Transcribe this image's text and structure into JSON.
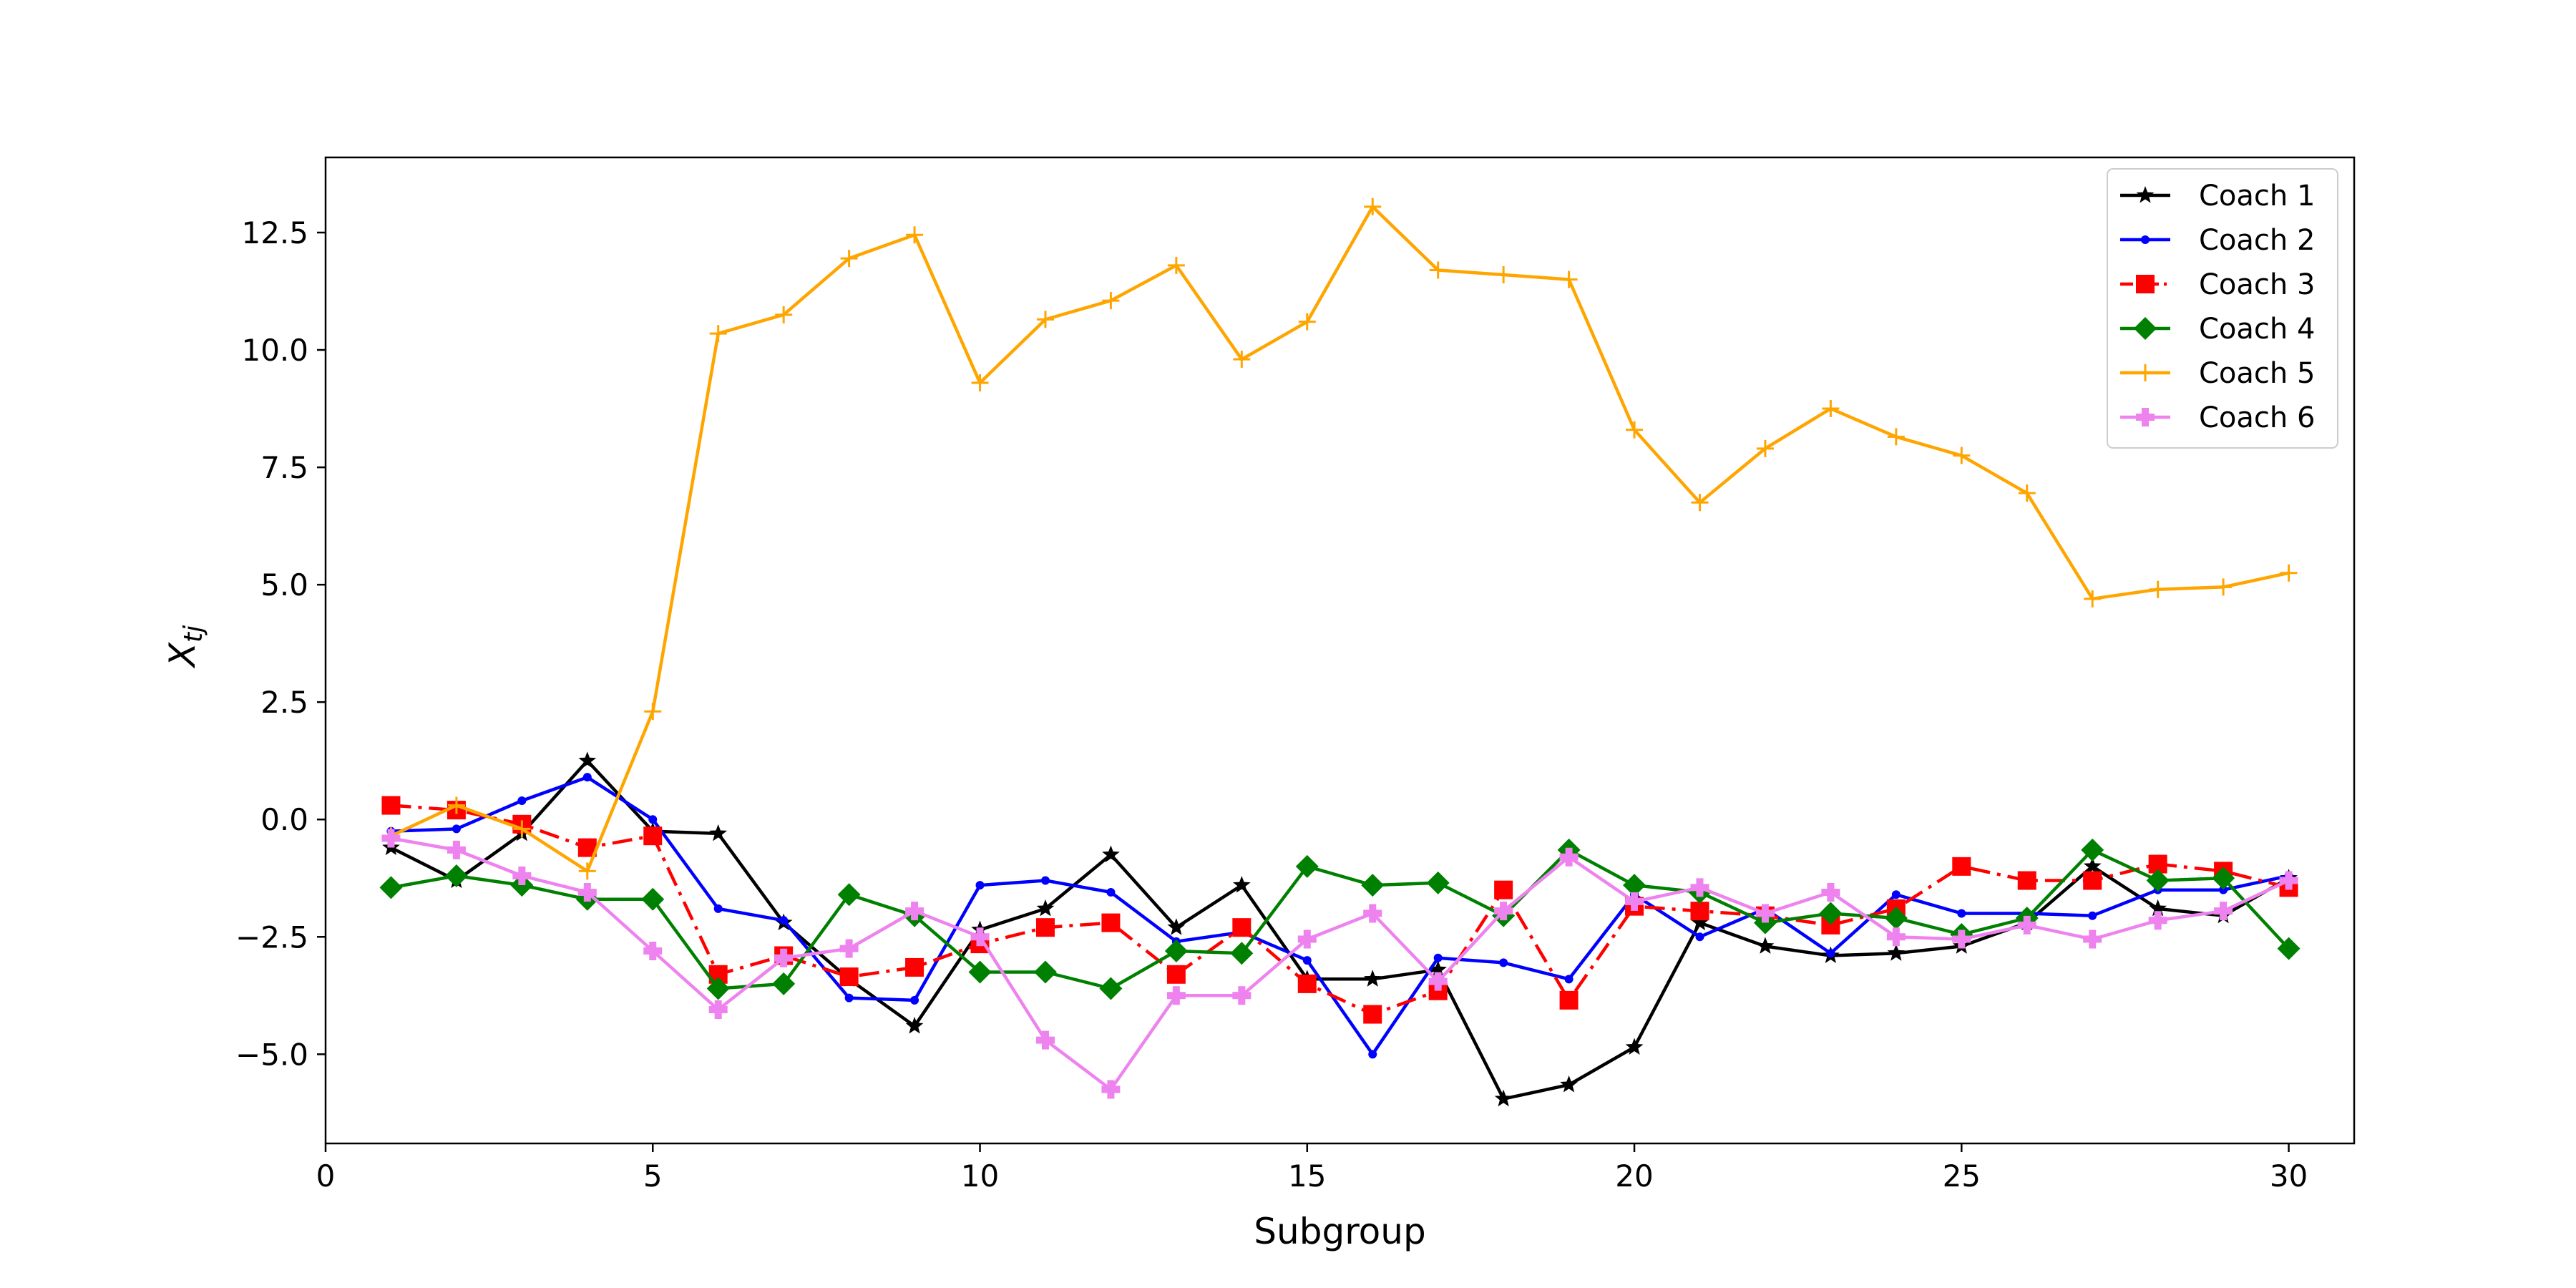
{
  "chart_data": {
    "type": "line",
    "title": "",
    "xlabel": "Subgroup",
    "ylabel": "X",
    "ylabel_subscript": "tj",
    "xlim": [
      0,
      31
    ],
    "ylim": [
      -6.9,
      14.1
    ],
    "xticks": [
      0,
      5,
      10,
      15,
      20,
      25,
      30
    ],
    "xtick_labels": [
      "0",
      "5",
      "10",
      "15",
      "20",
      "25",
      "30"
    ],
    "yticks": [
      -5.0,
      -2.5,
      0.0,
      2.5,
      5.0,
      7.5,
      10.0,
      12.5
    ],
    "ytick_labels": [
      "−5.0",
      "−2.5",
      "0.0",
      "2.5",
      "5.0",
      "7.5",
      "10.0",
      "12.5"
    ],
    "grid": false,
    "legend_position": "top-right",
    "x": [
      1,
      2,
      3,
      4,
      5,
      6,
      7,
      8,
      9,
      10,
      11,
      12,
      13,
      14,
      15,
      16,
      17,
      18,
      19,
      20,
      21,
      22,
      23,
      24,
      25,
      26,
      27,
      28,
      29,
      30
    ],
    "series": [
      {
        "name": "Coach 1",
        "color": "#000000",
        "marker": "star",
        "linestyle": "solid",
        "values": [
          -0.6,
          -1.3,
          -0.3,
          1.25,
          -0.25,
          -0.3,
          -2.2,
          -3.4,
          -4.4,
          -2.35,
          -1.9,
          -0.75,
          -2.3,
          -1.4,
          -3.4,
          -3.4,
          -3.2,
          -5.95,
          -5.65,
          -4.85,
          -2.2,
          -2.7,
          -2.9,
          -2.85,
          -2.7,
          -2.2,
          -1.0,
          -1.9,
          -2.05,
          -1.25
        ]
      },
      {
        "name": "Coach 2",
        "color": "#0000ff",
        "marker": "dot",
        "linestyle": "solid",
        "values": [
          -0.25,
          -0.2,
          0.4,
          0.9,
          0.0,
          -1.9,
          -2.15,
          -3.8,
          -3.85,
          -1.4,
          -1.3,
          -1.55,
          -2.6,
          -2.4,
          -3.0,
          -5.0,
          -2.95,
          -3.05,
          -3.4,
          -1.6,
          -2.5,
          -1.9,
          -2.85,
          -1.6,
          -2.0,
          -2.0,
          -2.05,
          -1.5,
          -1.5,
          -1.2
        ]
      },
      {
        "name": "Coach 3",
        "color": "#ff0000",
        "marker": "square",
        "linestyle": "dashdot",
        "values": [
          0.3,
          0.2,
          -0.1,
          -0.6,
          -0.35,
          -3.3,
          -2.9,
          -3.35,
          -3.15,
          -2.65,
          -2.3,
          -2.2,
          -3.3,
          -2.3,
          -3.5,
          -4.15,
          -3.65,
          -1.5,
          -3.85,
          -1.85,
          -1.95,
          -2.05,
          -2.25,
          -1.9,
          -1.0,
          -1.3,
          -1.3,
          -0.95,
          -1.1,
          -1.45
        ]
      },
      {
        "name": "Coach 4",
        "color": "#008000",
        "marker": "diamond",
        "linestyle": "solid",
        "values": [
          -1.45,
          -1.2,
          -1.4,
          -1.7,
          -1.7,
          -3.6,
          -3.5,
          -1.6,
          -2.05,
          -3.25,
          -3.25,
          -3.6,
          -2.8,
          -2.85,
          -1.0,
          -1.4,
          -1.35,
          -2.05,
          -0.65,
          -1.4,
          -1.55,
          -2.2,
          -2.0,
          -2.1,
          -2.45,
          -2.1,
          -0.65,
          -1.3,
          -1.25,
          -2.75
        ]
      },
      {
        "name": "Coach 5",
        "color": "#ffa500",
        "marker": "plus",
        "linestyle": "solid",
        "values": [
          -0.35,
          0.3,
          -0.2,
          -1.1,
          2.3,
          10.35,
          10.75,
          11.95,
          12.45,
          9.3,
          10.65,
          11.05,
          11.8,
          9.8,
          10.6,
          13.05,
          11.7,
          11.6,
          11.5,
          8.3,
          6.75,
          7.9,
          8.75,
          8.15,
          7.75,
          6.95,
          4.7,
          4.9,
          4.95,
          5.25
        ]
      },
      {
        "name": "Coach 6",
        "color": "#ee82ee",
        "marker": "plus-filled",
        "linestyle": "solid",
        "values": [
          -0.4,
          -0.65,
          -1.2,
          -1.55,
          -2.8,
          -4.05,
          -2.95,
          -2.75,
          -1.95,
          -2.5,
          -4.7,
          -5.75,
          -3.75,
          -3.75,
          -2.55,
          -2.0,
          -3.45,
          -1.95,
          -0.8,
          -1.75,
          -1.45,
          -2.0,
          -1.55,
          -2.5,
          -2.55,
          -2.25,
          -2.55,
          -2.15,
          -1.95,
          -1.3
        ]
      }
    ]
  }
}
